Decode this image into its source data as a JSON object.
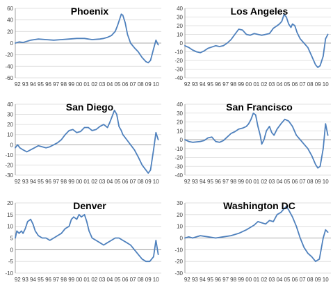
{
  "chart_data": [
    {
      "type": "line",
      "title": "Phoenix",
      "categories": [
        "92",
        "93",
        "94",
        "95",
        "96",
        "97",
        "98",
        "99",
        "00",
        "01",
        "02",
        "03",
        "04",
        "05",
        "06",
        "07",
        "08",
        "09",
        "10"
      ],
      "ylim": [
        -60,
        60
      ],
      "yticks": [
        -60,
        -40,
        -20,
        0,
        20,
        40,
        60
      ],
      "grid": true,
      "color": "#4f81bd",
      "x": [
        1992.0,
        1992.5,
        1993.0,
        1993.5,
        1994.0,
        1994.5,
        1995.0,
        1996.0,
        1997.0,
        1998.0,
        1999.0,
        2000.0,
        2001.0,
        2002.0,
        2003.0,
        2003.5,
        2004.0,
        2004.5,
        2005.0,
        2005.3,
        2005.6,
        2005.8,
        2006.0,
        2006.3,
        2006.6,
        2007.0,
        2007.5,
        2008.0,
        2008.5,
        2009.0,
        2009.3,
        2009.6,
        2010.0,
        2010.3,
        2010.6
      ],
      "y": [
        0,
        2,
        1,
        3,
        5,
        6,
        7,
        6,
        5,
        6,
        7,
        8,
        8,
        6,
        7,
        8,
        10,
        13,
        20,
        30,
        42,
        50,
        48,
        35,
        15,
        0,
        -8,
        -15,
        -25,
        -32,
        -34,
        -30,
        -10,
        5,
        -3
      ]
    },
    {
      "type": "line",
      "title": "Los Angeles",
      "categories": [
        "92",
        "93",
        "94",
        "95",
        "96",
        "97",
        "98",
        "99",
        "00",
        "01",
        "02",
        "03",
        "04",
        "05",
        "06",
        "07",
        "08",
        "09",
        "10"
      ],
      "ylim": [
        -40,
        40
      ],
      "yticks": [
        -40,
        -30,
        -20,
        -10,
        0,
        10,
        20,
        30,
        40
      ],
      "grid": true,
      "color": "#4f81bd",
      "x": [
        1992.0,
        1992.5,
        1993.0,
        1993.5,
        1994.0,
        1994.5,
        1995.0,
        1996.0,
        1996.5,
        1997.0,
        1997.5,
        1998.0,
        1998.5,
        1999.0,
        1999.5,
        2000.0,
        2000.5,
        2001.0,
        2001.5,
        2002.0,
        2002.5,
        2003.0,
        2003.5,
        2004.0,
        2004.3,
        2004.6,
        2004.9,
        2005.2,
        2005.5,
        2005.8,
        2006.0,
        2006.3,
        2006.6,
        2007.0,
        2007.5,
        2008.0,
        2008.5,
        2009.0,
        2009.3,
        2009.6,
        2010.0,
        2010.3,
        2010.6
      ],
      "y": [
        -3,
        -5,
        -8,
        -10,
        -11,
        -9,
        -6,
        -3,
        -4,
        -3,
        0,
        4,
        10,
        16,
        15,
        10,
        9,
        11,
        10,
        9,
        10,
        11,
        17,
        20,
        22,
        25,
        33,
        30,
        22,
        18,
        22,
        20,
        12,
        5,
        0,
        -5,
        -15,
        -25,
        -28,
        -26,
        -15,
        5,
        10
      ]
    },
    {
      "type": "line",
      "title": "San Diego",
      "categories": [
        "92",
        "93",
        "94",
        "95",
        "96",
        "97",
        "98",
        "99",
        "00",
        "01",
        "02",
        "03",
        "04",
        "05",
        "06",
        "07",
        "08",
        "09",
        "10"
      ],
      "ylim": [
        -30,
        40
      ],
      "yticks": [
        -30,
        -20,
        -10,
        0,
        10,
        20,
        30,
        40
      ],
      "grid": true,
      "color": "#4f81bd",
      "x": [
        1992.0,
        1992.3,
        1992.6,
        1993.0,
        1993.5,
        1994.0,
        1994.5,
        1995.0,
        1995.5,
        1996.0,
        1996.5,
        1997.0,
        1997.5,
        1998.0,
        1998.5,
        1999.0,
        1999.5,
        2000.0,
        2000.5,
        2001.0,
        2001.5,
        2002.0,
        2002.5,
        2003.0,
        2003.5,
        2004.0,
        2004.3,
        2004.6,
        2004.9,
        2005.2,
        2005.5,
        2005.8,
        2006.0,
        2006.5,
        2007.0,
        2007.5,
        2008.0,
        2008.5,
        2009.0,
        2009.3,
        2009.6,
        2010.0,
        2010.3,
        2010.6
      ],
      "y": [
        -3,
        0,
        -3,
        -5,
        -7,
        -5,
        -3,
        -1,
        -2,
        -3,
        -2,
        0,
        2,
        5,
        10,
        14,
        15,
        12,
        13,
        17,
        17,
        14,
        15,
        18,
        20,
        17,
        22,
        28,
        34,
        30,
        18,
        14,
        10,
        5,
        0,
        -5,
        -12,
        -20,
        -25,
        -28,
        -25,
        -5,
        12,
        5
      ]
    },
    {
      "type": "line",
      "title": "San Francisco",
      "categories": [
        "92",
        "93",
        "94",
        "95",
        "96",
        "97",
        "98",
        "99",
        "00",
        "01",
        "02",
        "03",
        "04",
        "05",
        "06",
        "07",
        "08",
        "09",
        "10"
      ],
      "ylim": [
        -40,
        40
      ],
      "yticks": [
        -40,
        -30,
        -20,
        -10,
        0,
        10,
        20,
        30,
        40
      ],
      "grid": true,
      "color": "#4f81bd",
      "x": [
        1992.0,
        1992.5,
        1993.0,
        1994.0,
        1994.5,
        1995.0,
        1995.5,
        1996.0,
        1996.5,
        1997.0,
        1997.5,
        1998.0,
        1998.5,
        1999.0,
        1999.5,
        2000.0,
        2000.3,
        2000.6,
        2000.9,
        2001.2,
        2001.5,
        2001.8,
        2002.0,
        2002.3,
        2002.6,
        2003.0,
        2003.3,
        2003.6,
        2004.0,
        2004.5,
        2005.0,
        2005.5,
        2006.0,
        2006.5,
        2007.0,
        2007.5,
        2008.0,
        2008.5,
        2009.0,
        2009.3,
        2009.6,
        2010.0,
        2010.3,
        2010.6
      ],
      "y": [
        0,
        -2,
        -3,
        -2,
        -1,
        2,
        3,
        -2,
        -3,
        -1,
        3,
        7,
        9,
        12,
        13,
        15,
        18,
        23,
        30,
        28,
        15,
        5,
        -5,
        0,
        10,
        15,
        8,
        5,
        12,
        18,
        23,
        21,
        15,
        5,
        0,
        -5,
        -10,
        -18,
        -28,
        -32,
        -30,
        -10,
        18,
        5
      ]
    },
    {
      "type": "line",
      "title": "Denver",
      "categories": [
        "92",
        "93",
        "94",
        "95",
        "96",
        "97",
        "98",
        "99",
        "00",
        "01",
        "02",
        "03",
        "04",
        "05",
        "06",
        "07",
        "08",
        "09",
        "10"
      ],
      "ylim": [
        -10,
        20
      ],
      "yticks": [
        -10,
        -5,
        0,
        5,
        10,
        15,
        20
      ],
      "grid": true,
      "color": "#4f81bd",
      "x": [
        1992.0,
        1992.2,
        1992.5,
        1992.8,
        1993.0,
        1993.3,
        1993.6,
        1994.0,
        1994.3,
        1994.6,
        1995.0,
        1995.5,
        1996.0,
        1996.5,
        1997.0,
        1997.5,
        1998.0,
        1998.5,
        1999.0,
        1999.3,
        1999.6,
        2000.0,
        2000.3,
        2000.6,
        2001.0,
        2001.3,
        2001.6,
        2002.0,
        2002.5,
        2003.0,
        2003.5,
        2004.0,
        2004.5,
        2005.0,
        2005.5,
        2006.0,
        2006.5,
        2007.0,
        2007.5,
        2008.0,
        2008.5,
        2009.0,
        2009.5,
        2010.0,
        2010.3,
        2010.6
      ],
      "y": [
        5,
        8,
        7,
        8,
        7,
        9,
        12,
        13,
        11,
        8,
        6,
        5,
        5,
        4,
        5,
        6,
        7,
        9,
        10,
        13,
        14,
        13,
        15,
        14,
        15,
        12,
        8,
        5,
        4,
        3,
        2,
        3,
        4,
        5,
        5,
        4,
        3,
        2,
        0,
        -2,
        -4,
        -5,
        -5,
        -3,
        4,
        -2
      ]
    },
    {
      "type": "line",
      "title": "Washington DC",
      "categories": [
        "92",
        "93",
        "94",
        "95",
        "96",
        "97",
        "98",
        "99",
        "00",
        "01",
        "02",
        "03",
        "04",
        "05",
        "06",
        "07",
        "08",
        "09",
        "10"
      ],
      "ylim": [
        -30,
        30
      ],
      "yticks": [
        -30,
        -20,
        -10,
        0,
        10,
        20,
        30
      ],
      "grid": true,
      "color": "#4f81bd",
      "x": [
        1992.0,
        1992.5,
        1993.0,
        1994.0,
        1995.0,
        1996.0,
        1997.0,
        1998.0,
        1999.0,
        2000.0,
        2000.5,
        2001.0,
        2001.5,
        2002.0,
        2002.5,
        2003.0,
        2003.5,
        2004.0,
        2004.5,
        2004.9,
        2005.2,
        2005.5,
        2006.0,
        2006.5,
        2007.0,
        2007.5,
        2008.0,
        2008.5,
        2009.0,
        2009.5,
        2010.0,
        2010.3,
        2010.6
      ],
      "y": [
        0,
        1,
        0,
        2,
        1,
        0,
        1,
        2,
        4,
        7,
        9,
        11,
        14,
        13,
        12,
        15,
        14,
        20,
        22,
        25,
        27,
        24,
        18,
        10,
        0,
        -8,
        -13,
        -16,
        -20,
        -18,
        0,
        7,
        5
      ]
    }
  ]
}
